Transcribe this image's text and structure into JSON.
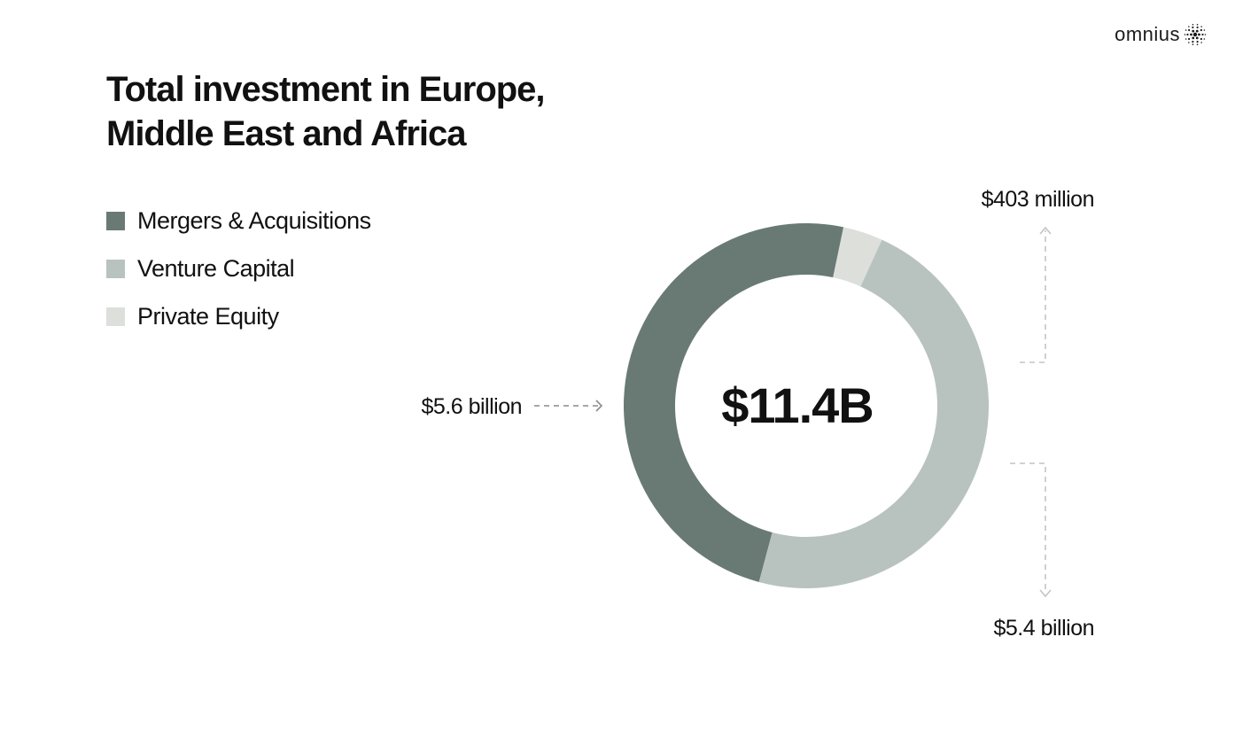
{
  "brand": {
    "name": "omnius"
  },
  "title_line1": "Total investment in Europe,",
  "title_line2": "Middle East and Africa",
  "chart_data": {
    "type": "pie",
    "variant": "donut",
    "title": "Total investment in Europe, Middle East and Africa",
    "total_label": "$11.4B",
    "legend_position": "top-left",
    "series": [
      {
        "name": "Mergers & Acquisitions",
        "value": 5.6,
        "unit": "billion USD",
        "label": "$5.6 billion",
        "color": "#687a73"
      },
      {
        "name": "Venture Capital",
        "value": 5.4,
        "unit": "billion USD",
        "label": "$5.4 billion",
        "color": "#b8c3bf"
      },
      {
        "name": "Private Equity",
        "value": 0.403,
        "unit": "billion USD",
        "label": "$403 million",
        "color": "#dcdfda"
      }
    ]
  }
}
